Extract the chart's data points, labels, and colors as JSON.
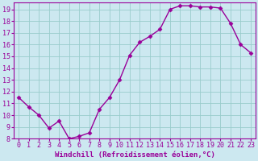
{
  "x": [
    0,
    1,
    2,
    3,
    4,
    5,
    6,
    7,
    8,
    9,
    10,
    11,
    12,
    13,
    14,
    15,
    16,
    17,
    18,
    19,
    20,
    21,
    22,
    23
  ],
  "y": [
    11.5,
    10.7,
    10.0,
    8.9,
    9.5,
    8.0,
    8.2,
    8.5,
    10.5,
    11.5,
    13.0,
    15.1,
    16.2,
    16.7,
    17.3,
    19.0,
    19.3,
    19.3,
    19.2,
    19.2,
    19.1,
    17.8,
    16.0,
    15.3
  ],
  "line_color": "#990099",
  "marker": "D",
  "marker_size": 2.5,
  "bg_color": "#cce8f0",
  "grid_color": "#99cccc",
  "xlabel": "Windchill (Refroidissement éolien,°C)",
  "ylabel": "",
  "title": "",
  "xlim": [
    -0.5,
    23.5
  ],
  "ylim": [
    8,
    19.6
  ],
  "yticks": [
    8,
    9,
    10,
    11,
    12,
    13,
    14,
    15,
    16,
    17,
    18,
    19
  ],
  "xticks": [
    0,
    1,
    2,
    3,
    4,
    5,
    6,
    7,
    8,
    9,
    10,
    11,
    12,
    13,
    14,
    15,
    16,
    17,
    18,
    19,
    20,
    21,
    22,
    23
  ],
  "tick_label_color": "#990099",
  "xlabel_color": "#990099",
  "xlabel_fontsize": 6.5,
  "tick_fontsize": 6,
  "line_width": 1.0
}
